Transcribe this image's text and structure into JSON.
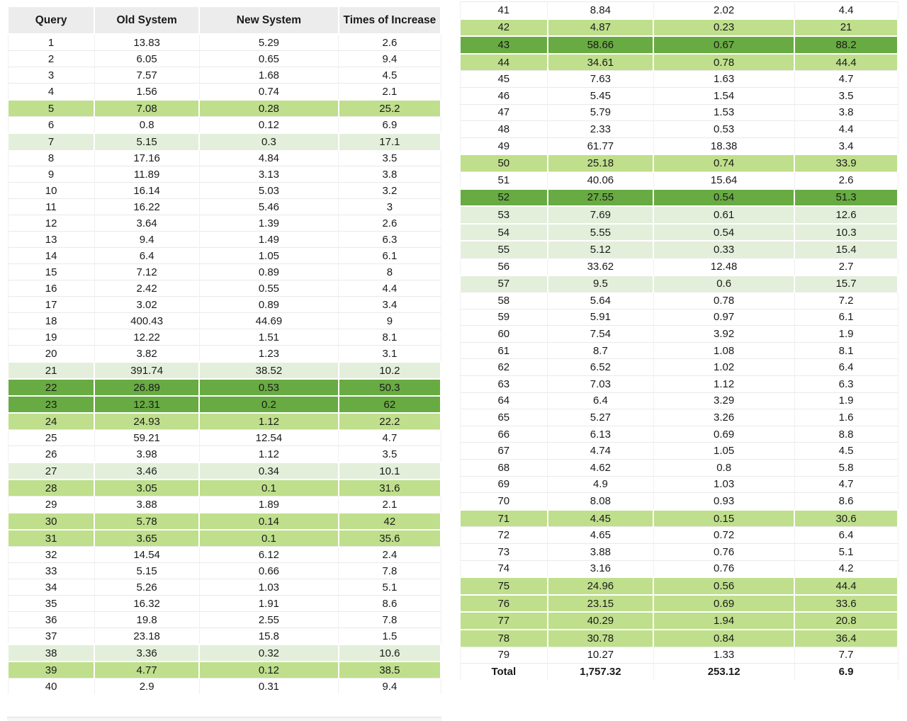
{
  "colors": {
    "highlight_light": "#e3efda",
    "highlight_medium": "#bfdf8c",
    "highlight_dark": "#68ab42",
    "header_bg": "#ececec",
    "grid_line": "#e9e9e9",
    "text": "#1a1a1a"
  },
  "chart_data": {
    "type": "table",
    "title": "",
    "columns": [
      "Query",
      "Old System",
      "New System",
      "Times of Increase"
    ],
    "highlight_levels": {
      "0": "none (white)",
      "1": "light green",
      "2": "medium green",
      "3": "dark green"
    },
    "left_rows": [
      [
        "1",
        "13.83",
        "5.29",
        "2.6",
        0
      ],
      [
        "2",
        "6.05",
        "0.65",
        "9.4",
        0
      ],
      [
        "3",
        "7.57",
        "1.68",
        "4.5",
        0
      ],
      [
        "4",
        "1.56",
        "0.74",
        "2.1",
        0
      ],
      [
        "5",
        "7.08",
        "0.28",
        "25.2",
        2
      ],
      [
        "6",
        "0.8",
        "0.12",
        "6.9",
        0
      ],
      [
        "7",
        "5.15",
        "0.3",
        "17.1",
        1
      ],
      [
        "8",
        "17.16",
        "4.84",
        "3.5",
        0
      ],
      [
        "9",
        "11.89",
        "3.13",
        "3.8",
        0
      ],
      [
        "10",
        "16.14",
        "5.03",
        "3.2",
        0
      ],
      [
        "11",
        "16.22",
        "5.46",
        "3",
        0
      ],
      [
        "12",
        "3.64",
        "1.39",
        "2.6",
        0
      ],
      [
        "13",
        "9.4",
        "1.49",
        "6.3",
        0
      ],
      [
        "14",
        "6.4",
        "1.05",
        "6.1",
        0
      ],
      [
        "15",
        "7.12",
        "0.89",
        "8",
        0
      ],
      [
        "16",
        "2.42",
        "0.55",
        "4.4",
        0
      ],
      [
        "17",
        "3.02",
        "0.89",
        "3.4",
        0
      ],
      [
        "18",
        "400.43",
        "44.69",
        "9",
        0
      ],
      [
        "19",
        "12.22",
        "1.51",
        "8.1",
        0
      ],
      [
        "20",
        "3.82",
        "1.23",
        "3.1",
        0
      ],
      [
        "21",
        "391.74",
        "38.52",
        "10.2",
        1
      ],
      [
        "22",
        "26.89",
        "0.53",
        "50.3",
        3
      ],
      [
        "23",
        "12.31",
        "0.2",
        "62",
        3
      ],
      [
        "24",
        "24.93",
        "1.12",
        "22.2",
        2
      ],
      [
        "25",
        "59.21",
        "12.54",
        "4.7",
        0
      ],
      [
        "26",
        "3.98",
        "1.12",
        "3.5",
        0
      ],
      [
        "27",
        "3.46",
        "0.34",
        "10.1",
        1
      ],
      [
        "28",
        "3.05",
        "0.1",
        "31.6",
        2
      ],
      [
        "29",
        "3.88",
        "1.89",
        "2.1",
        0
      ],
      [
        "30",
        "5.78",
        "0.14",
        "42",
        2
      ],
      [
        "31",
        "3.65",
        "0.1",
        "35.6",
        2
      ],
      [
        "32",
        "14.54",
        "6.12",
        "2.4",
        0
      ],
      [
        "33",
        "5.15",
        "0.66",
        "7.8",
        0
      ],
      [
        "34",
        "5.26",
        "1.03",
        "5.1",
        0
      ],
      [
        "35",
        "16.32",
        "1.91",
        "8.6",
        0
      ],
      [
        "36",
        "19.8",
        "2.55",
        "7.8",
        0
      ],
      [
        "37",
        "23.18",
        "15.8",
        "1.5",
        0
      ],
      [
        "38",
        "3.36",
        "0.32",
        "10.6",
        1
      ],
      [
        "39",
        "4.77",
        "0.12",
        "38.5",
        2
      ],
      [
        "40",
        "2.9",
        "0.31",
        "9.4",
        0
      ]
    ],
    "right_rows": [
      [
        "41",
        "8.84",
        "2.02",
        "4.4",
        0
      ],
      [
        "42",
        "4.87",
        "0.23",
        "21",
        2
      ],
      [
        "43",
        "58.66",
        "0.67",
        "88.2",
        3
      ],
      [
        "44",
        "34.61",
        "0.78",
        "44.4",
        2
      ],
      [
        "45",
        "7.63",
        "1.63",
        "4.7",
        0
      ],
      [
        "46",
        "5.45",
        "1.54",
        "3.5",
        0
      ],
      [
        "47",
        "5.79",
        "1.53",
        "3.8",
        0
      ],
      [
        "48",
        "2.33",
        "0.53",
        "4.4",
        0
      ],
      [
        "49",
        "61.77",
        "18.38",
        "3.4",
        0
      ],
      [
        "50",
        "25.18",
        "0.74",
        "33.9",
        2
      ],
      [
        "51",
        "40.06",
        "15.64",
        "2.6",
        0
      ],
      [
        "52",
        "27.55",
        "0.54",
        "51.3",
        3
      ],
      [
        "53",
        "7.69",
        "0.61",
        "12.6",
        1
      ],
      [
        "54",
        "5.55",
        "0.54",
        "10.3",
        1
      ],
      [
        "55",
        "5.12",
        "0.33",
        "15.4",
        1
      ],
      [
        "56",
        "33.62",
        "12.48",
        "2.7",
        0
      ],
      [
        "57",
        "9.5",
        "0.6",
        "15.7",
        1
      ],
      [
        "58",
        "5.64",
        "0.78",
        "7.2",
        0
      ],
      [
        "59",
        "5.91",
        "0.97",
        "6.1",
        0
      ],
      [
        "60",
        "7.54",
        "3.92",
        "1.9",
        0
      ],
      [
        "61",
        "8.7",
        "1.08",
        "8.1",
        0
      ],
      [
        "62",
        "6.52",
        "1.02",
        "6.4",
        0
      ],
      [
        "63",
        "7.03",
        "1.12",
        "6.3",
        0
      ],
      [
        "64",
        "6.4",
        "3.29",
        "1.9",
        0
      ],
      [
        "65",
        "5.27",
        "3.26",
        "1.6",
        0
      ],
      [
        "66",
        "6.13",
        "0.69",
        "8.8",
        0
      ],
      [
        "67",
        "4.74",
        "1.05",
        "4.5",
        0
      ],
      [
        "68",
        "4.62",
        "0.8",
        "5.8",
        0
      ],
      [
        "69",
        "4.9",
        "1.03",
        "4.7",
        0
      ],
      [
        "70",
        "8.08",
        "0.93",
        "8.6",
        0
      ],
      [
        "71",
        "4.45",
        "0.15",
        "30.6",
        2
      ],
      [
        "72",
        "4.65",
        "0.72",
        "6.4",
        0
      ],
      [
        "73",
        "3.88",
        "0.76",
        "5.1",
        0
      ],
      [
        "74",
        "3.16",
        "0.76",
        "4.2",
        0
      ],
      [
        "75",
        "24.96",
        "0.56",
        "44.4",
        2
      ],
      [
        "76",
        "23.15",
        "0.69",
        "33.6",
        2
      ],
      [
        "77",
        "40.29",
        "1.94",
        "20.8",
        2
      ],
      [
        "78",
        "30.78",
        "0.84",
        "36.4",
        2
      ],
      [
        "79",
        "10.27",
        "1.33",
        "7.7",
        0
      ]
    ],
    "total_row": [
      "Total",
      "1,757.32",
      "253.12",
      "6.9"
    ]
  }
}
